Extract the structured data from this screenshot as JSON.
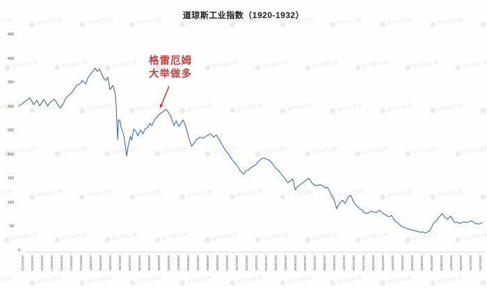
{
  "watermark": {
    "text": "华尔街见闻",
    "color": "#7d7d7d",
    "opacity": 0.16
  },
  "axis": {
    "line_color": "#c9c9c9",
    "y_label_color": "#454545",
    "x_label_color": "#555555"
  },
  "chart_data": {
    "type": "line",
    "title": "道琼斯工业指数（1920-1932）",
    "xlabel": "",
    "ylabel": "",
    "ylim": [
      0,
      450
    ],
    "y_ticks": [
      450,
      400,
      350,
      300,
      250,
      200,
      150,
      100,
      50,
      0
    ],
    "grid": false,
    "legend_position": "none",
    "x_labels": [
      "1929/01/23",
      "1929/02/20",
      "1929/03/20",
      "1929/04/17",
      "1929/05/15",
      "1929/06/12",
      "1929/07/10",
      "1929/08/07",
      "1929/09/04",
      "1929/10/02",
      "1929/11/06",
      "1929/12/04",
      "1930/01/08",
      "1930/02/05",
      "1930/03/05",
      "1930/04/02",
      "1930/05/07",
      "1930/06/04",
      "1930/07/02",
      "1930/08/06",
      "1930/09/03",
      "1930/10/01",
      "1930/11/05",
      "1930/12/03",
      "1931/01/07",
      "1931/02/04",
      "1931/03/04",
      "1931/04/01",
      "1931/05/06",
      "1931/06/03",
      "1931/07/01",
      "1931/08/05",
      "1931/09/02",
      "1931/10/07",
      "1931/11/04",
      "1931/12/02",
      "1932/01/06",
      "1932/02/03",
      "1932/03/02",
      "1932/04/06",
      "1932/05/04",
      "1932/06/01",
      "1932/07/06",
      "1932/08/03",
      "1932/09/07",
      "1932/10/05",
      "1932/11/02",
      "1932/12/07"
    ],
    "series": [
      {
        "name": "道琼斯工业指数",
        "color": "#3a6aa4",
        "points": [
          [
            0.0,
            303
          ],
          [
            0.008,
            308
          ],
          [
            0.017,
            315
          ],
          [
            0.024,
            320
          ],
          [
            0.032,
            306
          ],
          [
            0.039,
            315
          ],
          [
            0.045,
            303
          ],
          [
            0.054,
            317
          ],
          [
            0.062,
            303
          ],
          [
            0.069,
            312
          ],
          [
            0.077,
            317
          ],
          [
            0.084,
            306
          ],
          [
            0.09,
            299
          ],
          [
            0.095,
            306
          ],
          [
            0.102,
            320
          ],
          [
            0.11,
            327
          ],
          [
            0.117,
            334
          ],
          [
            0.125,
            346
          ],
          [
            0.132,
            349
          ],
          [
            0.137,
            356
          ],
          [
            0.144,
            349
          ],
          [
            0.15,
            363
          ],
          [
            0.158,
            373
          ],
          [
            0.165,
            382
          ],
          [
            0.17,
            375
          ],
          [
            0.174,
            380
          ],
          [
            0.182,
            363
          ],
          [
            0.188,
            356
          ],
          [
            0.192,
            363
          ],
          [
            0.197,
            337
          ],
          [
            0.203,
            346
          ],
          [
            0.208,
            330
          ],
          [
            0.21,
            306
          ],
          [
            0.212,
            261
          ],
          [
            0.2135,
            233
          ],
          [
            0.215,
            274
          ],
          [
            0.218,
            273
          ],
          [
            0.221,
            258
          ],
          [
            0.226,
            245
          ],
          [
            0.23,
            220
          ],
          [
            0.233,
            199
          ],
          [
            0.236,
            220
          ],
          [
            0.241,
            240
          ],
          [
            0.244,
            232
          ],
          [
            0.248,
            255
          ],
          [
            0.253,
            250
          ],
          [
            0.257,
            241
          ],
          [
            0.263,
            253
          ],
          [
            0.268,
            245
          ],
          [
            0.272,
            255
          ],
          [
            0.278,
            258
          ],
          [
            0.283,
            267
          ],
          [
            0.287,
            262
          ],
          [
            0.293,
            274
          ],
          [
            0.298,
            280
          ],
          [
            0.302,
            284
          ],
          [
            0.308,
            289
          ],
          [
            0.313,
            292
          ],
          [
            0.317,
            296
          ],
          [
            0.32,
            294
          ],
          [
            0.328,
            282
          ],
          [
            0.335,
            262
          ],
          [
            0.34,
            272
          ],
          [
            0.346,
            260
          ],
          [
            0.35,
            267
          ],
          [
            0.355,
            274
          ],
          [
            0.361,
            258
          ],
          [
            0.368,
            233
          ],
          [
            0.373,
            219
          ],
          [
            0.377,
            224
          ],
          [
            0.383,
            233
          ],
          [
            0.391,
            238
          ],
          [
            0.398,
            236
          ],
          [
            0.406,
            241
          ],
          [
            0.414,
            245
          ],
          [
            0.421,
            238
          ],
          [
            0.426,
            243
          ],
          [
            0.433,
            233
          ],
          [
            0.441,
            219
          ],
          [
            0.445,
            212
          ],
          [
            0.453,
            202
          ],
          [
            0.46,
            192
          ],
          [
            0.466,
            185
          ],
          [
            0.474,
            175
          ],
          [
            0.478,
            168
          ],
          [
            0.486,
            161
          ],
          [
            0.49,
            168
          ],
          [
            0.501,
            175
          ],
          [
            0.511,
            180
          ],
          [
            0.52,
            190
          ],
          [
            0.531,
            194
          ],
          [
            0.541,
            190
          ],
          [
            0.55,
            180
          ],
          [
            0.561,
            168
          ],
          [
            0.571,
            156
          ],
          [
            0.581,
            143
          ],
          [
            0.591,
            151
          ],
          [
            0.597,
            128
          ],
          [
            0.601,
            135
          ],
          [
            0.609,
            140
          ],
          [
            0.617,
            146
          ],
          [
            0.626,
            153
          ],
          [
            0.633,
            142
          ],
          [
            0.641,
            137
          ],
          [
            0.651,
            139
          ],
          [
            0.659,
            135
          ],
          [
            0.662,
            132
          ],
          [
            0.666,
            134
          ],
          [
            0.674,
            120
          ],
          [
            0.681,
            107
          ],
          [
            0.686,
            89
          ],
          [
            0.692,
            100
          ],
          [
            0.699,
            107
          ],
          [
            0.704,
            100
          ],
          [
            0.711,
            113
          ],
          [
            0.716,
            117
          ],
          [
            0.723,
            103
          ],
          [
            0.731,
            93
          ],
          [
            0.741,
            86
          ],
          [
            0.752,
            79
          ],
          [
            0.761,
            84
          ],
          [
            0.771,
            81
          ],
          [
            0.779,
            86
          ],
          [
            0.786,
            79
          ],
          [
            0.791,
            77
          ],
          [
            0.798,
            72
          ],
          [
            0.804,
            75
          ],
          [
            0.812,
            64
          ],
          [
            0.82,
            58
          ],
          [
            0.832,
            50
          ],
          [
            0.839,
            47
          ],
          [
            0.847,
            45
          ],
          [
            0.857,
            43
          ],
          [
            0.866,
            40
          ],
          [
            0.877,
            38
          ],
          [
            0.887,
            43
          ],
          [
            0.896,
            60
          ],
          [
            0.907,
            72
          ],
          [
            0.914,
            79
          ],
          [
            0.925,
            67
          ],
          [
            0.932,
            74
          ],
          [
            0.941,
            60
          ],
          [
            0.952,
            58
          ],
          [
            0.959,
            62
          ],
          [
            0.967,
            60
          ],
          [
            0.977,
            64
          ],
          [
            0.985,
            59
          ],
          [
            0.992,
            57
          ],
          [
            1.0,
            60
          ]
        ]
      }
    ],
    "annotation": {
      "lines": [
        "格雷厄姆",
        "大举做多"
      ],
      "color": "#c4403d",
      "arrow_from": [
        243,
        124
      ],
      "arrow_to": [
        230,
        156
      ]
    }
  }
}
